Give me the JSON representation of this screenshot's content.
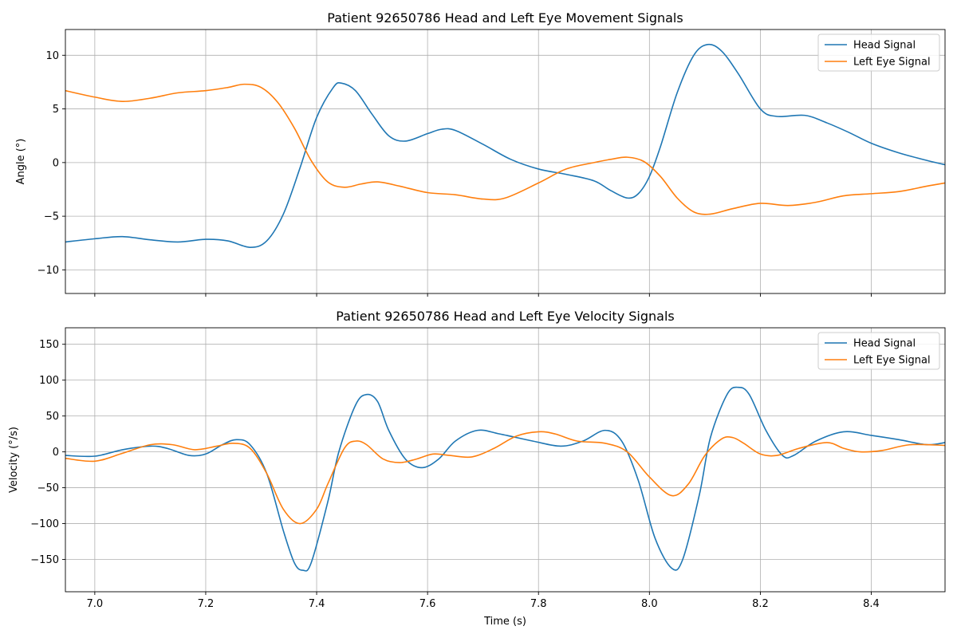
{
  "chart_data": [
    {
      "type": "line",
      "title": "Patient 92650786 Head and Left Eye Movement Signals",
      "xlabel": "",
      "ylabel": "Angle (°)",
      "xlim": [
        6.947,
        8.533
      ],
      "ylim": [
        -12.2,
        12.4
      ],
      "xticks": [
        "7.0",
        "7.2",
        "7.4",
        "7.6",
        "7.8",
        "8.0",
        "8.2",
        "8.4"
      ],
      "xtick_values": [
        7.0,
        7.2,
        7.4,
        7.6,
        7.8,
        8.0,
        8.2,
        8.4
      ],
      "show_xtick_labels": false,
      "yticks": [
        "−10",
        "−5",
        "0",
        "5",
        "10"
      ],
      "ytick_values": [
        -10,
        -5,
        0,
        5,
        10
      ],
      "grid": true,
      "legend": "top-right",
      "series": [
        {
          "name": "Head Signal",
          "color": "#1f77b4",
          "points": [
            [
              6.947,
              -7.4
            ],
            [
              7.0,
              -7.1
            ],
            [
              7.05,
              -6.9
            ],
            [
              7.1,
              -7.2
            ],
            [
              7.15,
              -7.4
            ],
            [
              7.2,
              -7.15
            ],
            [
              7.24,
              -7.3
            ],
            [
              7.28,
              -7.9
            ],
            [
              7.31,
              -7.3
            ],
            [
              7.34,
              -4.8
            ],
            [
              7.37,
              -0.5
            ],
            [
              7.4,
              4.2
            ],
            [
              7.43,
              7.0
            ],
            [
              7.445,
              7.4
            ],
            [
              7.47,
              6.7
            ],
            [
              7.5,
              4.5
            ],
            [
              7.53,
              2.5
            ],
            [
              7.56,
              2.0
            ],
            [
              7.6,
              2.7
            ],
            [
              7.625,
              3.1
            ],
            [
              7.65,
              3.0
            ],
            [
              7.7,
              1.7
            ],
            [
              7.75,
              0.3
            ],
            [
              7.8,
              -0.6
            ],
            [
              7.85,
              -1.1
            ],
            [
              7.9,
              -1.7
            ],
            [
              7.93,
              -2.6
            ],
            [
              7.96,
              -3.3
            ],
            [
              7.98,
              -2.9
            ],
            [
              8.0,
              -1.3
            ],
            [
              8.02,
              1.5
            ],
            [
              8.05,
              6.5
            ],
            [
              8.08,
              10.0
            ],
            [
              8.105,
              11.0
            ],
            [
              8.13,
              10.4
            ],
            [
              8.16,
              8.3
            ],
            [
              8.2,
              5.0
            ],
            [
              8.23,
              4.3
            ],
            [
              8.28,
              4.4
            ],
            [
              8.32,
              3.7
            ],
            [
              8.36,
              2.8
            ],
            [
              8.4,
              1.8
            ],
            [
              8.45,
              0.9
            ],
            [
              8.5,
              0.2
            ],
            [
              8.533,
              -0.2
            ]
          ]
        },
        {
          "name": "Left Eye Signal",
          "color": "#ff7f0e",
          "points": [
            [
              6.947,
              6.7
            ],
            [
              7.0,
              6.1
            ],
            [
              7.05,
              5.7
            ],
            [
              7.1,
              6.0
            ],
            [
              7.15,
              6.5
            ],
            [
              7.2,
              6.7
            ],
            [
              7.24,
              7.0
            ],
            [
              7.27,
              7.3
            ],
            [
              7.3,
              7.0
            ],
            [
              7.33,
              5.6
            ],
            [
              7.36,
              3.2
            ],
            [
              7.39,
              0.2
            ],
            [
              7.42,
              -1.8
            ],
            [
              7.45,
              -2.3
            ],
            [
              7.48,
              -2.0
            ],
            [
              7.51,
              -1.8
            ],
            [
              7.55,
              -2.2
            ],
            [
              7.6,
              -2.8
            ],
            [
              7.65,
              -3.0
            ],
            [
              7.7,
              -3.4
            ],
            [
              7.74,
              -3.3
            ],
            [
              7.8,
              -1.9
            ],
            [
              7.85,
              -0.6
            ],
            [
              7.9,
              0.0
            ],
            [
              7.93,
              0.3
            ],
            [
              7.96,
              0.5
            ],
            [
              7.99,
              0.1
            ],
            [
              8.02,
              -1.3
            ],
            [
              8.05,
              -3.3
            ],
            [
              8.08,
              -4.6
            ],
            [
              8.11,
              -4.8
            ],
            [
              8.15,
              -4.3
            ],
            [
              8.2,
              -3.8
            ],
            [
              8.25,
              -4.0
            ],
            [
              8.3,
              -3.7
            ],
            [
              8.35,
              -3.1
            ],
            [
              8.4,
              -2.9
            ],
            [
              8.45,
              -2.7
            ],
            [
              8.5,
              -2.2
            ],
            [
              8.533,
              -1.9
            ]
          ]
        }
      ]
    },
    {
      "type": "line",
      "title": "Patient 92650786 Head and Left Eye Velocity Signals",
      "xlabel": "Time (s)",
      "ylabel": "Velocity (°/s)",
      "xlim": [
        6.947,
        8.533
      ],
      "ylim": [
        -195,
        173
      ],
      "xticks": [
        "7.0",
        "7.2",
        "7.4",
        "7.6",
        "7.8",
        "8.0",
        "8.2",
        "8.4"
      ],
      "xtick_values": [
        7.0,
        7.2,
        7.4,
        7.6,
        7.8,
        8.0,
        8.2,
        8.4
      ],
      "show_xtick_labels": true,
      "yticks": [
        "−150",
        "−100",
        "−50",
        "0",
        "50",
        "100",
        "150"
      ],
      "ytick_values": [
        -150,
        -100,
        -50,
        0,
        50,
        100,
        150
      ],
      "grid": true,
      "legend": "top-right",
      "series": [
        {
          "name": "Head Signal",
          "color": "#1f77b4",
          "points": [
            [
              6.947,
              -5
            ],
            [
              7.0,
              -6
            ],
            [
              7.05,
              3
            ],
            [
              7.1,
              8
            ],
            [
              7.13,
              5
            ],
            [
              7.17,
              -5
            ],
            [
              7.2,
              -3
            ],
            [
              7.23,
              10
            ],
            [
              7.255,
              17
            ],
            [
              7.28,
              10
            ],
            [
              7.31,
              -30
            ],
            [
              7.34,
              -110
            ],
            [
              7.36,
              -155
            ],
            [
              7.375,
              -165
            ],
            [
              7.39,
              -155
            ],
            [
              7.42,
              -70
            ],
            [
              7.44,
              0
            ],
            [
              7.47,
              65
            ],
            [
              7.49,
              80
            ],
            [
              7.51,
              70
            ],
            [
              7.53,
              30
            ],
            [
              7.56,
              -10
            ],
            [
              7.59,
              -22
            ],
            [
              7.62,
              -10
            ],
            [
              7.65,
              15
            ],
            [
              7.69,
              30
            ],
            [
              7.73,
              25
            ],
            [
              7.79,
              15
            ],
            [
              7.84,
              8
            ],
            [
              7.88,
              15
            ],
            [
              7.92,
              30
            ],
            [
              7.95,
              15
            ],
            [
              7.98,
              -40
            ],
            [
              8.01,
              -120
            ],
            [
              8.04,
              -162
            ],
            [
              8.06,
              -150
            ],
            [
              8.09,
              -60
            ],
            [
              8.11,
              20
            ],
            [
              8.14,
              80
            ],
            [
              8.16,
              90
            ],
            [
              8.18,
              80
            ],
            [
              8.21,
              30
            ],
            [
              8.24,
              -5
            ],
            [
              8.26,
              -5
            ],
            [
              8.3,
              15
            ],
            [
              8.35,
              28
            ],
            [
              8.4,
              23
            ],
            [
              8.45,
              17
            ],
            [
              8.5,
              10
            ],
            [
              8.533,
              13
            ]
          ]
        },
        {
          "name": "Left Eye Signal",
          "color": "#ff7f0e",
          "points": [
            [
              6.947,
              -9
            ],
            [
              7.0,
              -13
            ],
            [
              7.05,
              -2
            ],
            [
              7.1,
              10
            ],
            [
              7.14,
              10
            ],
            [
              7.18,
              3
            ],
            [
              7.22,
              8
            ],
            [
              7.25,
              12
            ],
            [
              7.28,
              5
            ],
            [
              7.31,
              -30
            ],
            [
              7.34,
              -80
            ],
            [
              7.37,
              -100
            ],
            [
              7.4,
              -80
            ],
            [
              7.42,
              -45
            ],
            [
              7.45,
              5
            ],
            [
              7.47,
              15
            ],
            [
              7.49,
              10
            ],
            [
              7.52,
              -10
            ],
            [
              7.55,
              -15
            ],
            [
              7.58,
              -10
            ],
            [
              7.61,
              -3
            ],
            [
              7.64,
              -5
            ],
            [
              7.68,
              -7
            ],
            [
              7.72,
              5
            ],
            [
              7.76,
              22
            ],
            [
              7.8,
              28
            ],
            [
              7.83,
              25
            ],
            [
              7.87,
              15
            ],
            [
              7.92,
              12
            ],
            [
              7.96,
              0
            ],
            [
              8.0,
              -35
            ],
            [
              8.04,
              -61
            ],
            [
              8.07,
              -45
            ],
            [
              8.1,
              -5
            ],
            [
              8.13,
              18
            ],
            [
              8.15,
              20
            ],
            [
              8.17,
              12
            ],
            [
              8.2,
              -3
            ],
            [
              8.23,
              -5
            ],
            [
              8.27,
              5
            ],
            [
              8.32,
              13
            ],
            [
              8.35,
              5
            ],
            [
              8.38,
              0
            ],
            [
              8.42,
              2
            ],
            [
              8.47,
              10
            ],
            [
              8.533,
              9
            ]
          ]
        }
      ]
    }
  ]
}
